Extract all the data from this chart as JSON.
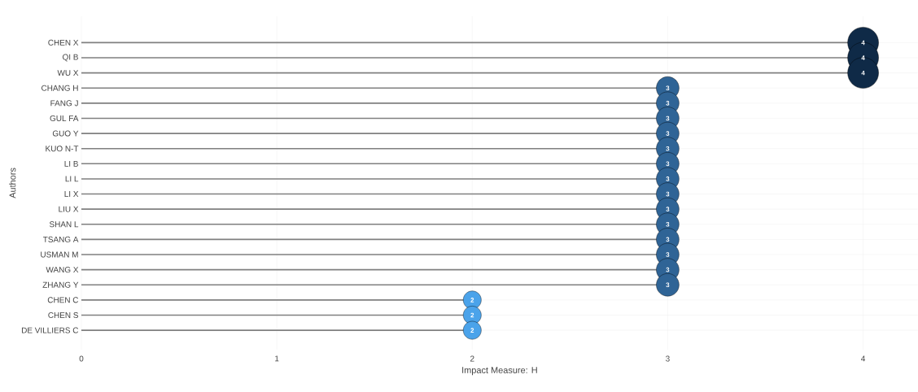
{
  "chart_data": {
    "type": "lollipop",
    "orientation": "horizontal",
    "xlabel": "Impact Measure: H",
    "ylabel": "Authors",
    "categories": [
      "CHEN X",
      "QI B",
      "WU X",
      "CHANG H",
      "FANG J",
      "GUL FA",
      "GUO Y",
      "KUO N-T",
      "LI B",
      "LI L",
      "LI X",
      "LIU X",
      "SHAN L",
      "TSANG A",
      "USMAN M",
      "WANG X",
      "ZHANG Y",
      "CHEN C",
      "CHEN S",
      "DE VILLIERS C"
    ],
    "values": [
      4,
      4,
      4,
      3,
      3,
      3,
      3,
      3,
      3,
      3,
      3,
      3,
      3,
      3,
      3,
      3,
      3,
      2,
      2,
      2
    ],
    "colors": [
      "#0f2a47",
      "#0f2a47",
      "#0f2a47",
      "#2f6496",
      "#2f6496",
      "#2f6496",
      "#2f6496",
      "#2f6496",
      "#2f6496",
      "#2f6496",
      "#2f6496",
      "#2f6496",
      "#2f6496",
      "#2f6496",
      "#2f6496",
      "#2f6496",
      "#2f6496",
      "#4ba3ea",
      "#4ba3ea",
      "#4ba3ea"
    ],
    "sizes": [
      1,
      1,
      1,
      0.54,
      0.54,
      0.54,
      0.54,
      0.54,
      0.54,
      0.54,
      0.54,
      0.54,
      0.54,
      0.54,
      0.54,
      0.54,
      0.54,
      0.34,
      0.34,
      0.34
    ],
    "xlim": [
      0,
      4.28
    ],
    "xticks": [
      0,
      1,
      2,
      3,
      4
    ],
    "grid": true,
    "data_labels": true,
    "marker": "circle"
  }
}
